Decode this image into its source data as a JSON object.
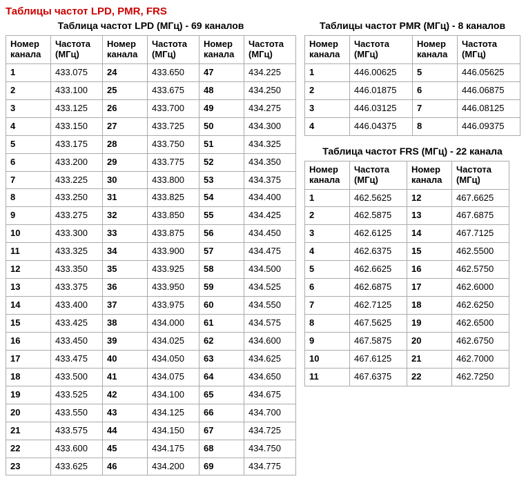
{
  "page": {
    "title": "Таблицы частот LPD, PMR, FRS"
  },
  "headers": {
    "channel": "Номер канала",
    "freq": "Частота (МГц)"
  },
  "lpd": {
    "caption": "Таблица частот LPD (МГц) - 69 каналов",
    "col1": [
      {
        "ch": "1",
        "f": "433.075"
      },
      {
        "ch": "2",
        "f": "433.100"
      },
      {
        "ch": "3",
        "f": "433.125"
      },
      {
        "ch": "4",
        "f": "433.150"
      },
      {
        "ch": "5",
        "f": "433.175"
      },
      {
        "ch": "6",
        "f": "433.200"
      },
      {
        "ch": "7",
        "f": "433.225"
      },
      {
        "ch": "8",
        "f": "433.250"
      },
      {
        "ch": "9",
        "f": "433.275"
      },
      {
        "ch": "10",
        "f": "433.300"
      },
      {
        "ch": "11",
        "f": "433.325"
      },
      {
        "ch": "12",
        "f": "433.350"
      },
      {
        "ch": "13",
        "f": "433.375"
      },
      {
        "ch": "14",
        "f": "433.400"
      },
      {
        "ch": "15",
        "f": "433.425"
      },
      {
        "ch": "16",
        "f": "433.450"
      },
      {
        "ch": "17",
        "f": "433.475"
      },
      {
        "ch": "18",
        "f": "433.500"
      },
      {
        "ch": "19",
        "f": "433.525"
      },
      {
        "ch": "20",
        "f": "433.550"
      },
      {
        "ch": "21",
        "f": "433.575"
      },
      {
        "ch": "22",
        "f": "433.600"
      },
      {
        "ch": "23",
        "f": "433.625"
      }
    ],
    "col2": [
      {
        "ch": "24",
        "f": "433.650"
      },
      {
        "ch": "25",
        "f": "433.675"
      },
      {
        "ch": "26",
        "f": "433.700"
      },
      {
        "ch": "27",
        "f": "433.725"
      },
      {
        "ch": "28",
        "f": "433.750"
      },
      {
        "ch": "29",
        "f": "433.775"
      },
      {
        "ch": "30",
        "f": "433.800"
      },
      {
        "ch": "31",
        "f": "433.825"
      },
      {
        "ch": "32",
        "f": "433.850"
      },
      {
        "ch": "33",
        "f": "433.875"
      },
      {
        "ch": "34",
        "f": "433.900"
      },
      {
        "ch": "35",
        "f": "433.925"
      },
      {
        "ch": "36",
        "f": "433.950"
      },
      {
        "ch": "37",
        "f": "433.975"
      },
      {
        "ch": "38",
        "f": "434.000"
      },
      {
        "ch": "39",
        "f": "434.025"
      },
      {
        "ch": "40",
        "f": "434.050"
      },
      {
        "ch": "41",
        "f": "434.075"
      },
      {
        "ch": "42",
        "f": "434.100"
      },
      {
        "ch": "43",
        "f": "434.125"
      },
      {
        "ch": "44",
        "f": "434.150"
      },
      {
        "ch": "45",
        "f": "434.175"
      },
      {
        "ch": "46",
        "f": "434.200"
      }
    ],
    "col3": [
      {
        "ch": "47",
        "f": "434.225"
      },
      {
        "ch": "48",
        "f": "434.250"
      },
      {
        "ch": "49",
        "f": "434.275"
      },
      {
        "ch": "50",
        "f": "434.300"
      },
      {
        "ch": "51",
        "f": "434.325"
      },
      {
        "ch": "52",
        "f": "434.350"
      },
      {
        "ch": "53",
        "f": "434.375"
      },
      {
        "ch": "54",
        "f": "434.400"
      },
      {
        "ch": "55",
        "f": "434.425"
      },
      {
        "ch": "56",
        "f": "434.450"
      },
      {
        "ch": "57",
        "f": "434.475"
      },
      {
        "ch": "58",
        "f": "434.500"
      },
      {
        "ch": "59",
        "f": "434.525"
      },
      {
        "ch": "60",
        "f": "434.550"
      },
      {
        "ch": "61",
        "f": "434.575"
      },
      {
        "ch": "62",
        "f": "434.600"
      },
      {
        "ch": "63",
        "f": "434.625"
      },
      {
        "ch": "64",
        "f": "434.650"
      },
      {
        "ch": "65",
        "f": "434.675"
      },
      {
        "ch": "66",
        "f": "434.700"
      },
      {
        "ch": "67",
        "f": "434.725"
      },
      {
        "ch": "68",
        "f": "434.750"
      },
      {
        "ch": "69",
        "f": "434.775"
      }
    ]
  },
  "pmr": {
    "caption": "Таблицы частот PMR (МГц) - 8 каналов",
    "col1": [
      {
        "ch": "1",
        "f": "446.00625"
      },
      {
        "ch": "2",
        "f": "446.01875"
      },
      {
        "ch": "3",
        "f": "446.03125"
      },
      {
        "ch": "4",
        "f": "446.04375"
      }
    ],
    "col2": [
      {
        "ch": "5",
        "f": "446.05625"
      },
      {
        "ch": "6",
        "f": "446.06875"
      },
      {
        "ch": "7",
        "f": "446.08125"
      },
      {
        "ch": "8",
        "f": "446.09375"
      }
    ]
  },
  "frs": {
    "caption": "Таблица частот FRS (МГц) - 22 канала",
    "col1": [
      {
        "ch": "1",
        "f": "462.5625"
      },
      {
        "ch": "2",
        "f": "462.5875"
      },
      {
        "ch": "3",
        "f": "462.6125"
      },
      {
        "ch": "4",
        "f": "462.6375"
      },
      {
        "ch": "5",
        "f": "462.6625"
      },
      {
        "ch": "6",
        "f": "462.6875"
      },
      {
        "ch": "7",
        "f": "462.7125"
      },
      {
        "ch": "8",
        "f": "467.5625"
      },
      {
        "ch": "9",
        "f": "467.5875"
      },
      {
        "ch": "10",
        "f": "467.6125"
      },
      {
        "ch": "11",
        "f": "467.6375"
      }
    ],
    "col2": [
      {
        "ch": "12",
        "f": "467.6625"
      },
      {
        "ch": "13",
        "f": "467.6875"
      },
      {
        "ch": "14",
        "f": "467.7125"
      },
      {
        "ch": "15",
        "f": "462.5500"
      },
      {
        "ch": "16",
        "f": "462.5750"
      },
      {
        "ch": "17",
        "f": "462.6000"
      },
      {
        "ch": "18",
        "f": "462.6250"
      },
      {
        "ch": "19",
        "f": "462.6500"
      },
      {
        "ch": "20",
        "f": "462.6750"
      },
      {
        "ch": "21",
        "f": "462.7000"
      },
      {
        "ch": "22",
        "f": "462.7250"
      }
    ]
  }
}
